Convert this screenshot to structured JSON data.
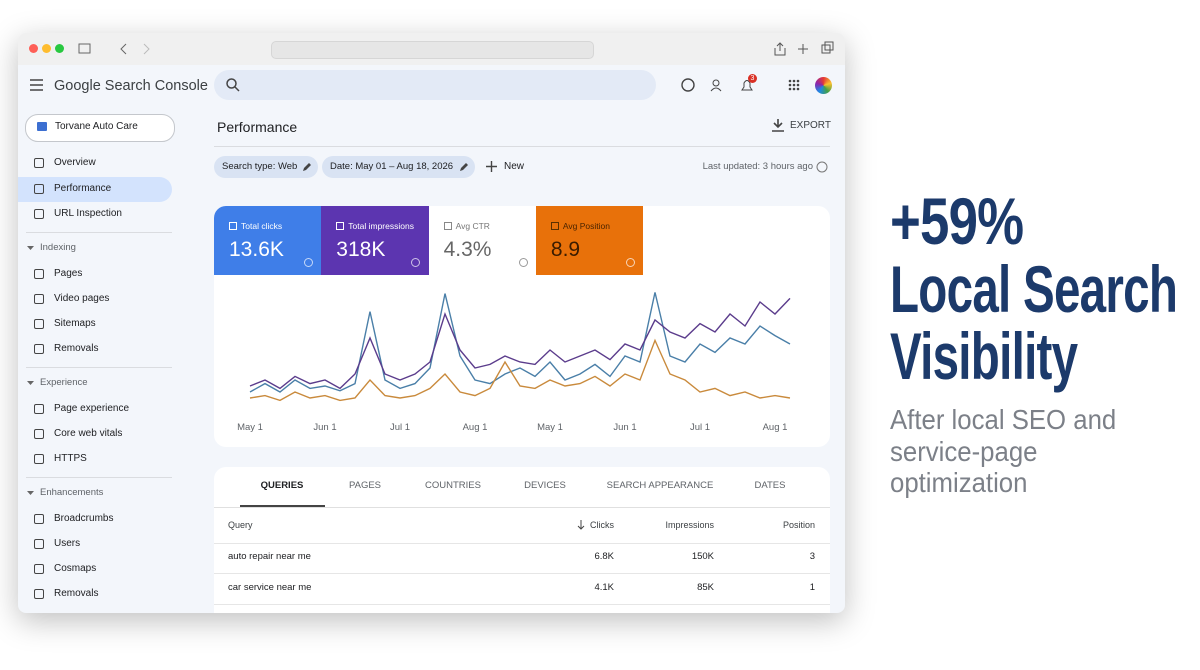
{
  "header": {
    "brand": "Google Search Console",
    "notification_count": "3"
  },
  "sidebar": {
    "property": "Torvane Auto Care",
    "top_items": [
      "Overview",
      "Performance",
      "URL Inspection"
    ],
    "sections": [
      {
        "title": "Indexing",
        "items": [
          "Pages",
          "Video pages",
          "Sitemaps",
          "Removals"
        ]
      },
      {
        "title": "Experience",
        "items": [
          "Page experience",
          "Core web vitals",
          "HTTPS"
        ]
      },
      {
        "title": "Enhancements",
        "items": [
          "Broadcrumbs",
          "Users",
          "Cosmaps",
          "Removals"
        ]
      }
    ]
  },
  "main": {
    "title": "Performance",
    "export": "EXPORT",
    "filters": [
      "Search type: Web",
      "Date: May 01 – Aug 18, 2026"
    ],
    "new": "New",
    "last_updated": "Last updated: 3 hours ago"
  },
  "metrics": [
    {
      "label": "Total clicks",
      "value": "13.6K",
      "color": "#3f7ee8"
    },
    {
      "label": "Total impressions",
      "value": "318K",
      "color": "#5c35b0"
    },
    {
      "label": "Avg CTR",
      "value": "4.3%",
      "color": "#ffffff"
    },
    {
      "label": "Avg Position",
      "value": "8.9",
      "color": "#e8710a"
    }
  ],
  "chart_data": {
    "type": "line",
    "ylim": [
      0,
      100
    ],
    "categories": [
      "May 1",
      null,
      null,
      null,
      null,
      "Jun 1",
      null,
      null,
      null,
      null,
      "Jul 1",
      null,
      null,
      null,
      null,
      "Aug 1",
      null,
      null,
      null,
      null,
      "May 1",
      null,
      null,
      null,
      null,
      "Jun 1",
      null,
      null,
      null,
      null,
      "Jul 1",
      null,
      null,
      null,
      null,
      "Aug 1",
      null
    ],
    "series": [
      {
        "name": "Total clicks",
        "color": "#4a7fa8",
        "values": [
          15,
          22,
          15,
          25,
          18,
          20,
          16,
          22,
          82,
          25,
          18,
          22,
          35,
          97,
          45,
          25,
          22,
          30,
          35,
          28,
          40,
          25,
          30,
          38,
          28,
          45,
          40,
          98,
          45,
          40,
          55,
          48,
          60,
          55,
          70,
          62,
          55
        ]
      },
      {
        "name": "Total impressions",
        "color": "#5b3c8c",
        "values": [
          20,
          25,
          18,
          28,
          22,
          25,
          18,
          30,
          60,
          30,
          25,
          30,
          40,
          80,
          50,
          35,
          38,
          45,
          40,
          38,
          50,
          40,
          45,
          50,
          42,
          55,
          50,
          75,
          65,
          60,
          72,
          65,
          80,
          70,
          90,
          80,
          93
        ]
      },
      {
        "name": "Avg Position",
        "color": "#c98a3c",
        "values": [
          10,
          12,
          8,
          15,
          10,
          12,
          8,
          10,
          25,
          12,
          10,
          12,
          18,
          30,
          15,
          12,
          18,
          40,
          20,
          18,
          25,
          20,
          22,
          28,
          20,
          30,
          25,
          58,
          30,
          25,
          15,
          18,
          12,
          15,
          10,
          12,
          10
        ]
      }
    ]
  },
  "tabs": [
    "QUERIES",
    "PAGES",
    "COUNTRIES",
    "DEVICES",
    "SEARCH APPEARANCE",
    "DATES"
  ],
  "table": {
    "columns": [
      "Query",
      "Clicks",
      "Impressions",
      "Position"
    ],
    "rows": [
      [
        "auto repair near me",
        "6.8K",
        "150K",
        "3"
      ],
      [
        "car service near me",
        "4.1K",
        "85K",
        "1"
      ]
    ]
  },
  "headline": {
    "stat": "+59%",
    "title_lines": [
      "Local Search",
      "Visibility"
    ],
    "subtitle_lines": [
      "After local SEO and",
      "service-page",
      "optimization"
    ]
  }
}
